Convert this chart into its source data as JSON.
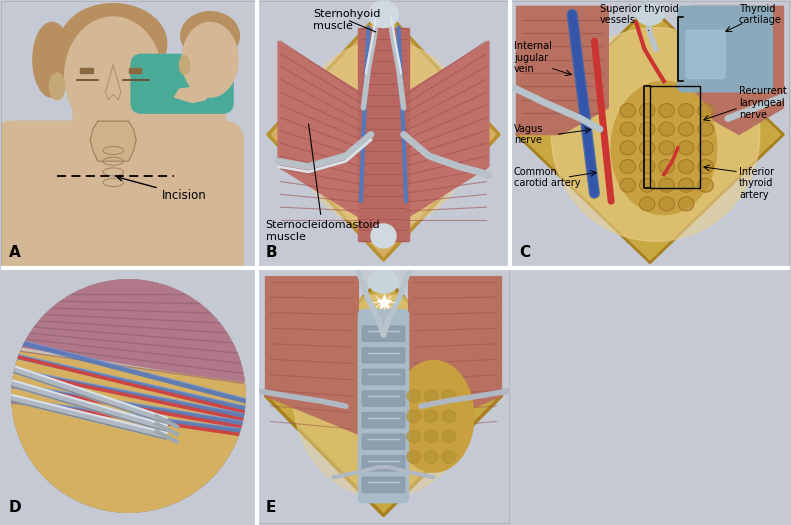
{
  "figure_bg": "#c4c9d4",
  "panel_bg": "#c4c9d4",
  "border_color": "#ffffff",
  "panels": {
    "A": {
      "label": "A",
      "annotation": "Incision"
    },
    "B": {
      "label": "B",
      "ann1": "Sternohyoid\nmuscle",
      "ann2": "Sternocleidomastoid\nmuscle"
    },
    "C": {
      "label": "C",
      "ann_sup": "Superior thyroid\nvessels",
      "ann_cart": "Thyroid\ncartilage",
      "ann_ijv": "Internal\njugular\nvein",
      "ann_rln": "Recurrent\nlaryngeal\nnerve",
      "ann_vn": "Vagus\nnerve",
      "ann_cca": "Common\ncarotid artery",
      "ann_ita": "Inferior\nthyroid\nartery"
    },
    "D": {
      "label": "D"
    },
    "E": {
      "label": "E"
    }
  },
  "skin_color": "#d4b896",
  "skin_dark": "#c4a878",
  "muscle_color": "#b87060",
  "muscle_dark": "#9a5848",
  "vessel_blue": "#6688cc",
  "vessel_red": "#cc4444",
  "fat_color": "#e8c878",
  "fat_dark": "#d4aa55",
  "trachea_color": "#a0b8cc",
  "instrument_color": "#c0c8d0",
  "instrument_dark": "#a0a8b0",
  "bg_glow": "#e8d0a0",
  "thyroid_color": "#d4a855",
  "cartilage_color": "#88aabb",
  "wound_border": "#c8a040"
}
